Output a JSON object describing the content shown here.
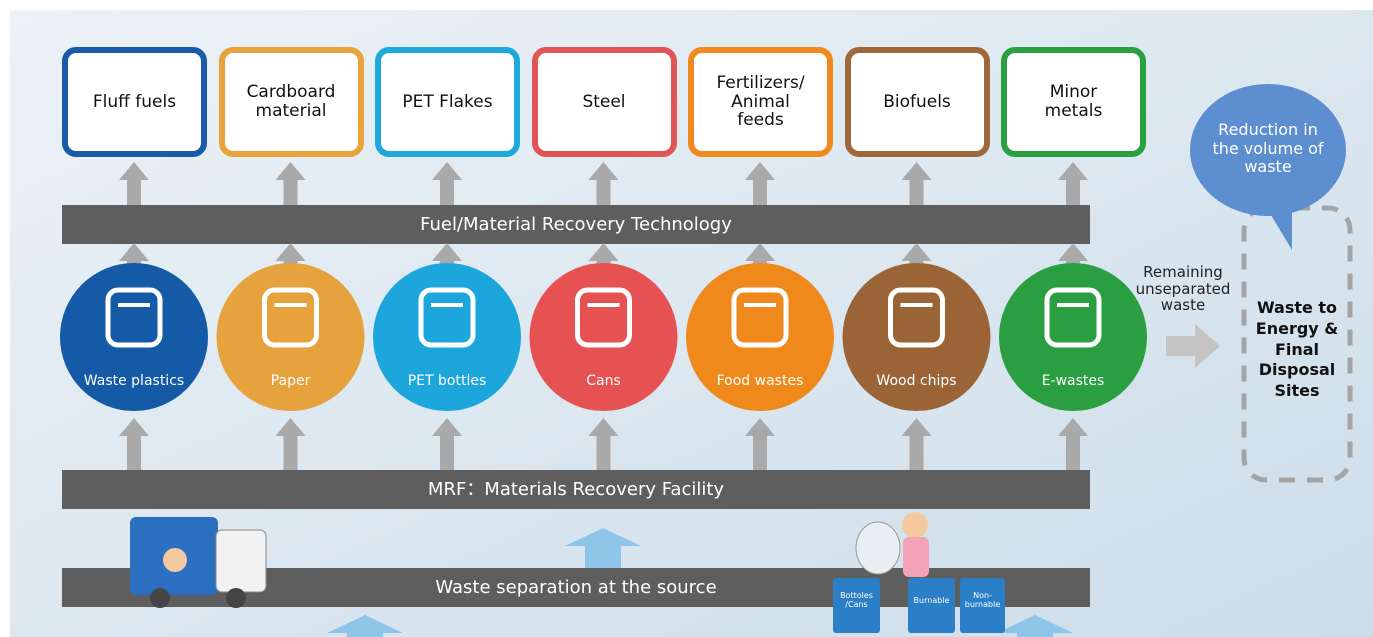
{
  "products": [
    "Fluff fuels",
    "Cardboard material",
    "PET Flakes",
    "Steel",
    "Fertilizers/ Animal feeds",
    "Biofuels",
    "Minor metals"
  ],
  "recovery_bar": "Fuel/Material Recovery Technology",
  "materials": [
    "Waste plastics",
    "Paper",
    "PET bottles",
    "Cans",
    "Food wastes",
    "Wood chips",
    "E-wastes"
  ],
  "remaining_label": "Remaining unseparated waste",
  "bubble": "Reduction in the volume of waste",
  "disposal": "Waste to Energy & Final Disposal Sites",
  "mrf_bar": "MRF：Materials Recovery Facility",
  "source_bar": "Waste separation at the source",
  "bins": [
    "Bottoles /Cans",
    "Burnable",
    "Non-burnable"
  ]
}
